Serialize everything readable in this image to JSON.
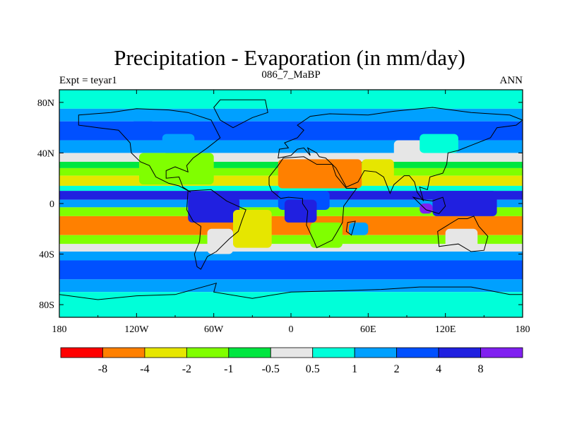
{
  "chart_data": {
    "type": "heatmap",
    "title": "Precipitation - Evaporation (in mm/day)",
    "subtitle_left": "Expt = teyar1",
    "subtitle_center": "086_7_MaBP",
    "subtitle_right": "ANN",
    "x_ticks": [
      "180",
      "120W",
      "60W",
      "0",
      "60E",
      "120E",
      "180"
    ],
    "x_tick_lon": [
      -180,
      -120,
      -60,
      0,
      60,
      120,
      180
    ],
    "y_ticks": [
      "80N",
      "40N",
      "0",
      "40S",
      "80S"
    ],
    "y_tick_lat": [
      80,
      40,
      0,
      -40,
      -80
    ],
    "xlim": [
      -180,
      180
    ],
    "ylim": [
      -90,
      90
    ],
    "colorbar": {
      "labels": [
        "-8",
        "-4",
        "-2",
        "-1",
        "-0.5",
        "0.5",
        "1",
        "2",
        "4",
        "8"
      ],
      "colors": [
        "#ff0000",
        "#ff8000",
        "#e6e600",
        "#80ff00",
        "#00e640",
        "#e6e6e6",
        "#00ffd9",
        "#00a0ff",
        "#0050ff",
        "#2020e0",
        "#8020f0"
      ]
    },
    "zonal_bands": [
      {
        "lat_range": [
          90,
          75
        ],
        "level": 0.7
      },
      {
        "lat_range": [
          75,
          65
        ],
        "level": 1.5
      },
      {
        "lat_range": [
          65,
          50
        ],
        "level": 3
      },
      {
        "lat_range": [
          50,
          40
        ],
        "level": 1.5
      },
      {
        "lat_range": [
          40,
          33
        ],
        "level": 0
      },
      {
        "lat_range": [
          33,
          28
        ],
        "level": -0.7
      },
      {
        "lat_range": [
          28,
          22
        ],
        "level": -1.5
      },
      {
        "lat_range": [
          22,
          14
        ],
        "level": -3
      },
      {
        "lat_range": [
          14,
          10
        ],
        "level": 0.7
      },
      {
        "lat_range": [
          10,
          3
        ],
        "level": 4.5
      },
      {
        "lat_range": [
          3,
          -3
        ],
        "level": 1.5
      },
      {
        "lat_range": [
          -3,
          -10
        ],
        "level": -1.5
      },
      {
        "lat_range": [
          -10,
          -25
        ],
        "level": -5
      },
      {
        "lat_range": [
          -25,
          -32
        ],
        "level": -1.5
      },
      {
        "lat_range": [
          -32,
          -38
        ],
        "level": 0
      },
      {
        "lat_range": [
          -38,
          -45
        ],
        "level": 1.5
      },
      {
        "lat_range": [
          -45,
          -60
        ],
        "level": 3
      },
      {
        "lat_range": [
          -60,
          -70
        ],
        "level": 1.5
      },
      {
        "lat_range": [
          -70,
          -90
        ],
        "level": 0.7
      }
    ],
    "regions": [
      {
        "lon": [
          -118,
          -60
        ],
        "lat": [
          40,
          15
        ],
        "level": -1.5
      },
      {
        "lon": [
          -100,
          -75
        ],
        "lat": [
          55,
          40
        ],
        "level": 1.5
      },
      {
        "lon": [
          -125,
          -105
        ],
        "lat": [
          65,
          50
        ],
        "level": 3
      },
      {
        "lon": [
          -10,
          55
        ],
        "lat": [
          35,
          12
        ],
        "level": -5
      },
      {
        "lon": [
          55,
          80
        ],
        "lat": [
          35,
          15
        ],
        "level": -3
      },
      {
        "lon": [
          80,
          110
        ],
        "lat": [
          50,
          35
        ],
        "level": 0
      },
      {
        "lon": [
          100,
          130
        ],
        "lat": [
          55,
          40
        ],
        "level": 0.7
      },
      {
        "lon": [
          -80,
          -40
        ],
        "lat": [
          5,
          -15
        ],
        "level": 4.5
      },
      {
        "lon": [
          -45,
          -15
        ],
        "lat": [
          -5,
          -35
        ],
        "level": -3
      },
      {
        "lon": [
          -65,
          -45
        ],
        "lat": [
          -20,
          -40
        ],
        "level": 0
      },
      {
        "lon": [
          -10,
          30
        ],
        "lat": [
          10,
          -5
        ],
        "level": 3
      },
      {
        "lon": [
          -5,
          20
        ],
        "lat": [
          3,
          -15
        ],
        "level": 4.5
      },
      {
        "lon": [
          15,
          40
        ],
        "lat": [
          -15,
          -35
        ],
        "level": -1.5
      },
      {
        "lon": [
          45,
          60
        ],
        "lat": [
          -15,
          -25
        ],
        "level": 1.5
      },
      {
        "lon": [
          110,
          160
        ],
        "lat": [
          10,
          -10
        ],
        "level": 6
      },
      {
        "lon": [
          120,
          145
        ],
        "lat": [
          -20,
          -35
        ],
        "level": 0
      },
      {
        "lon": [
          100,
          110
        ],
        "lat": [
          0,
          -8
        ],
        "level": 9
      }
    ],
    "land_outlines": [
      {
        "name": "north-america",
        "points": [
          [
            -165,
            70
          ],
          [
            -140,
            72
          ],
          [
            -120,
            75
          ],
          [
            -95,
            74
          ],
          [
            -80,
            72
          ],
          [
            -62,
            66
          ],
          [
            -55,
            52
          ],
          [
            -65,
            44
          ],
          [
            -76,
            36
          ],
          [
            -81,
            30
          ],
          [
            -80,
            25
          ],
          [
            -90,
            29
          ],
          [
            -97,
            26
          ],
          [
            -97,
            20
          ],
          [
            -87,
            21
          ],
          [
            -84,
            13
          ],
          [
            -78,
            9
          ],
          [
            -87,
            14
          ],
          [
            -95,
            16
          ],
          [
            -105,
            21
          ],
          [
            -110,
            30
          ],
          [
            -117,
            33
          ],
          [
            -124,
            40
          ],
          [
            -125,
            48
          ],
          [
            -134,
            58
          ],
          [
            -150,
            60
          ],
          [
            -165,
            62
          ]
        ]
      },
      {
        "name": "greenland",
        "points": [
          [
            -55,
            82
          ],
          [
            -20,
            82
          ],
          [
            -18,
            72
          ],
          [
            -30,
            68
          ],
          [
            -45,
            60
          ],
          [
            -55,
            66
          ],
          [
            -60,
            76
          ]
        ]
      },
      {
        "name": "south-america",
        "points": [
          [
            -80,
            10
          ],
          [
            -62,
            11
          ],
          [
            -50,
            2
          ],
          [
            -35,
            -5
          ],
          [
            -38,
            -13
          ],
          [
            -41,
            -22
          ],
          [
            -48,
            -28
          ],
          [
            -58,
            -38
          ],
          [
            -65,
            -42
          ],
          [
            -70,
            -52
          ],
          [
            -73,
            -50
          ],
          [
            -75,
            -40
          ],
          [
            -71,
            -30
          ],
          [
            -70,
            -18
          ],
          [
            -76,
            -14
          ],
          [
            -81,
            -5
          ]
        ]
      },
      {
        "name": "eurasia",
        "points": [
          [
            -10,
            36
          ],
          [
            -9,
            43
          ],
          [
            -2,
            44
          ],
          [
            -5,
            48
          ],
          [
            5,
            52
          ],
          [
            10,
            58
          ],
          [
            5,
            62
          ],
          [
            15,
            69
          ],
          [
            30,
            71
          ],
          [
            60,
            70
          ],
          [
            80,
            73
          ],
          [
            110,
            76
          ],
          [
            140,
            72
          ],
          [
            170,
            70
          ],
          [
            180,
            66
          ],
          [
            175,
            62
          ],
          [
            160,
            60
          ],
          [
            155,
            52
          ],
          [
            140,
            46
          ],
          [
            130,
            42
          ],
          [
            122,
            40
          ],
          [
            121,
            31
          ],
          [
            118,
            24
          ],
          [
            108,
            21
          ],
          [
            106,
            11
          ],
          [
            100,
            13
          ],
          [
            103,
            2
          ],
          [
            98,
            9
          ],
          [
            96,
            17
          ],
          [
            92,
            22
          ],
          [
            88,
            22
          ],
          [
            80,
            15
          ],
          [
            77,
            8
          ],
          [
            72,
            21
          ],
          [
            66,
            25
          ],
          [
            57,
            26
          ],
          [
            52,
            17
          ],
          [
            43,
            13
          ],
          [
            35,
            28
          ],
          [
            32,
            31
          ],
          [
            27,
            36
          ],
          [
            22,
            37
          ],
          [
            20,
            40
          ],
          [
            13,
            44
          ],
          [
            15,
            38
          ],
          [
            10,
            44
          ],
          [
            5,
            43
          ],
          [
            0,
            38
          ]
        ]
      },
      {
        "name": "africa",
        "points": [
          [
            -17,
            21
          ],
          [
            -10,
            30
          ],
          [
            -6,
            36
          ],
          [
            10,
            37
          ],
          [
            20,
            31
          ],
          [
            32,
            31
          ],
          [
            35,
            22
          ],
          [
            43,
            12
          ],
          [
            51,
            12
          ],
          [
            41,
            -2
          ],
          [
            40,
            -15
          ],
          [
            35,
            -24
          ],
          [
            32,
            -29
          ],
          [
            20,
            -35
          ],
          [
            18,
            -30
          ],
          [
            12,
            -17
          ],
          [
            13,
            -6
          ],
          [
            9,
            0
          ],
          [
            9,
            4
          ],
          [
            -2,
            5
          ],
          [
            -8,
            4
          ],
          [
            -15,
            10
          ],
          [
            -17,
            15
          ]
        ]
      },
      {
        "name": "madagascar",
        "points": [
          [
            44,
            -15
          ],
          [
            50,
            -14
          ],
          [
            47,
            -25
          ],
          [
            43,
            -22
          ]
        ]
      },
      {
        "name": "australia",
        "points": [
          [
            114,
            -22
          ],
          [
            122,
            -17
          ],
          [
            130,
            -12
          ],
          [
            137,
            -12
          ],
          [
            142,
            -10
          ],
          [
            146,
            -18
          ],
          [
            153,
            -26
          ],
          [
            150,
            -37
          ],
          [
            140,
            -38
          ],
          [
            130,
            -32
          ],
          [
            115,
            -34
          ]
        ]
      },
      {
        "name": "indonesia",
        "points": [
          [
            95,
            5
          ],
          [
            105,
            -5
          ],
          [
            115,
            -8
          ],
          [
            120,
            -2
          ],
          [
            118,
            5
          ],
          [
            110,
            2
          ],
          [
            102,
            3
          ]
        ]
      },
      {
        "name": "antarctica",
        "points": [
          [
            -180,
            -72
          ],
          [
            -150,
            -76
          ],
          [
            -120,
            -73
          ],
          [
            -90,
            -72
          ],
          [
            -65,
            -65
          ],
          [
            -58,
            -63
          ],
          [
            -60,
            -70
          ],
          [
            -30,
            -75
          ],
          [
            0,
            -70
          ],
          [
            40,
            -69
          ],
          [
            70,
            -68
          ],
          [
            100,
            -66
          ],
          [
            140,
            -66
          ],
          [
            170,
            -72
          ],
          [
            180,
            -72
          ],
          [
            180,
            -90
          ],
          [
            -180,
            -90
          ]
        ]
      }
    ]
  }
}
